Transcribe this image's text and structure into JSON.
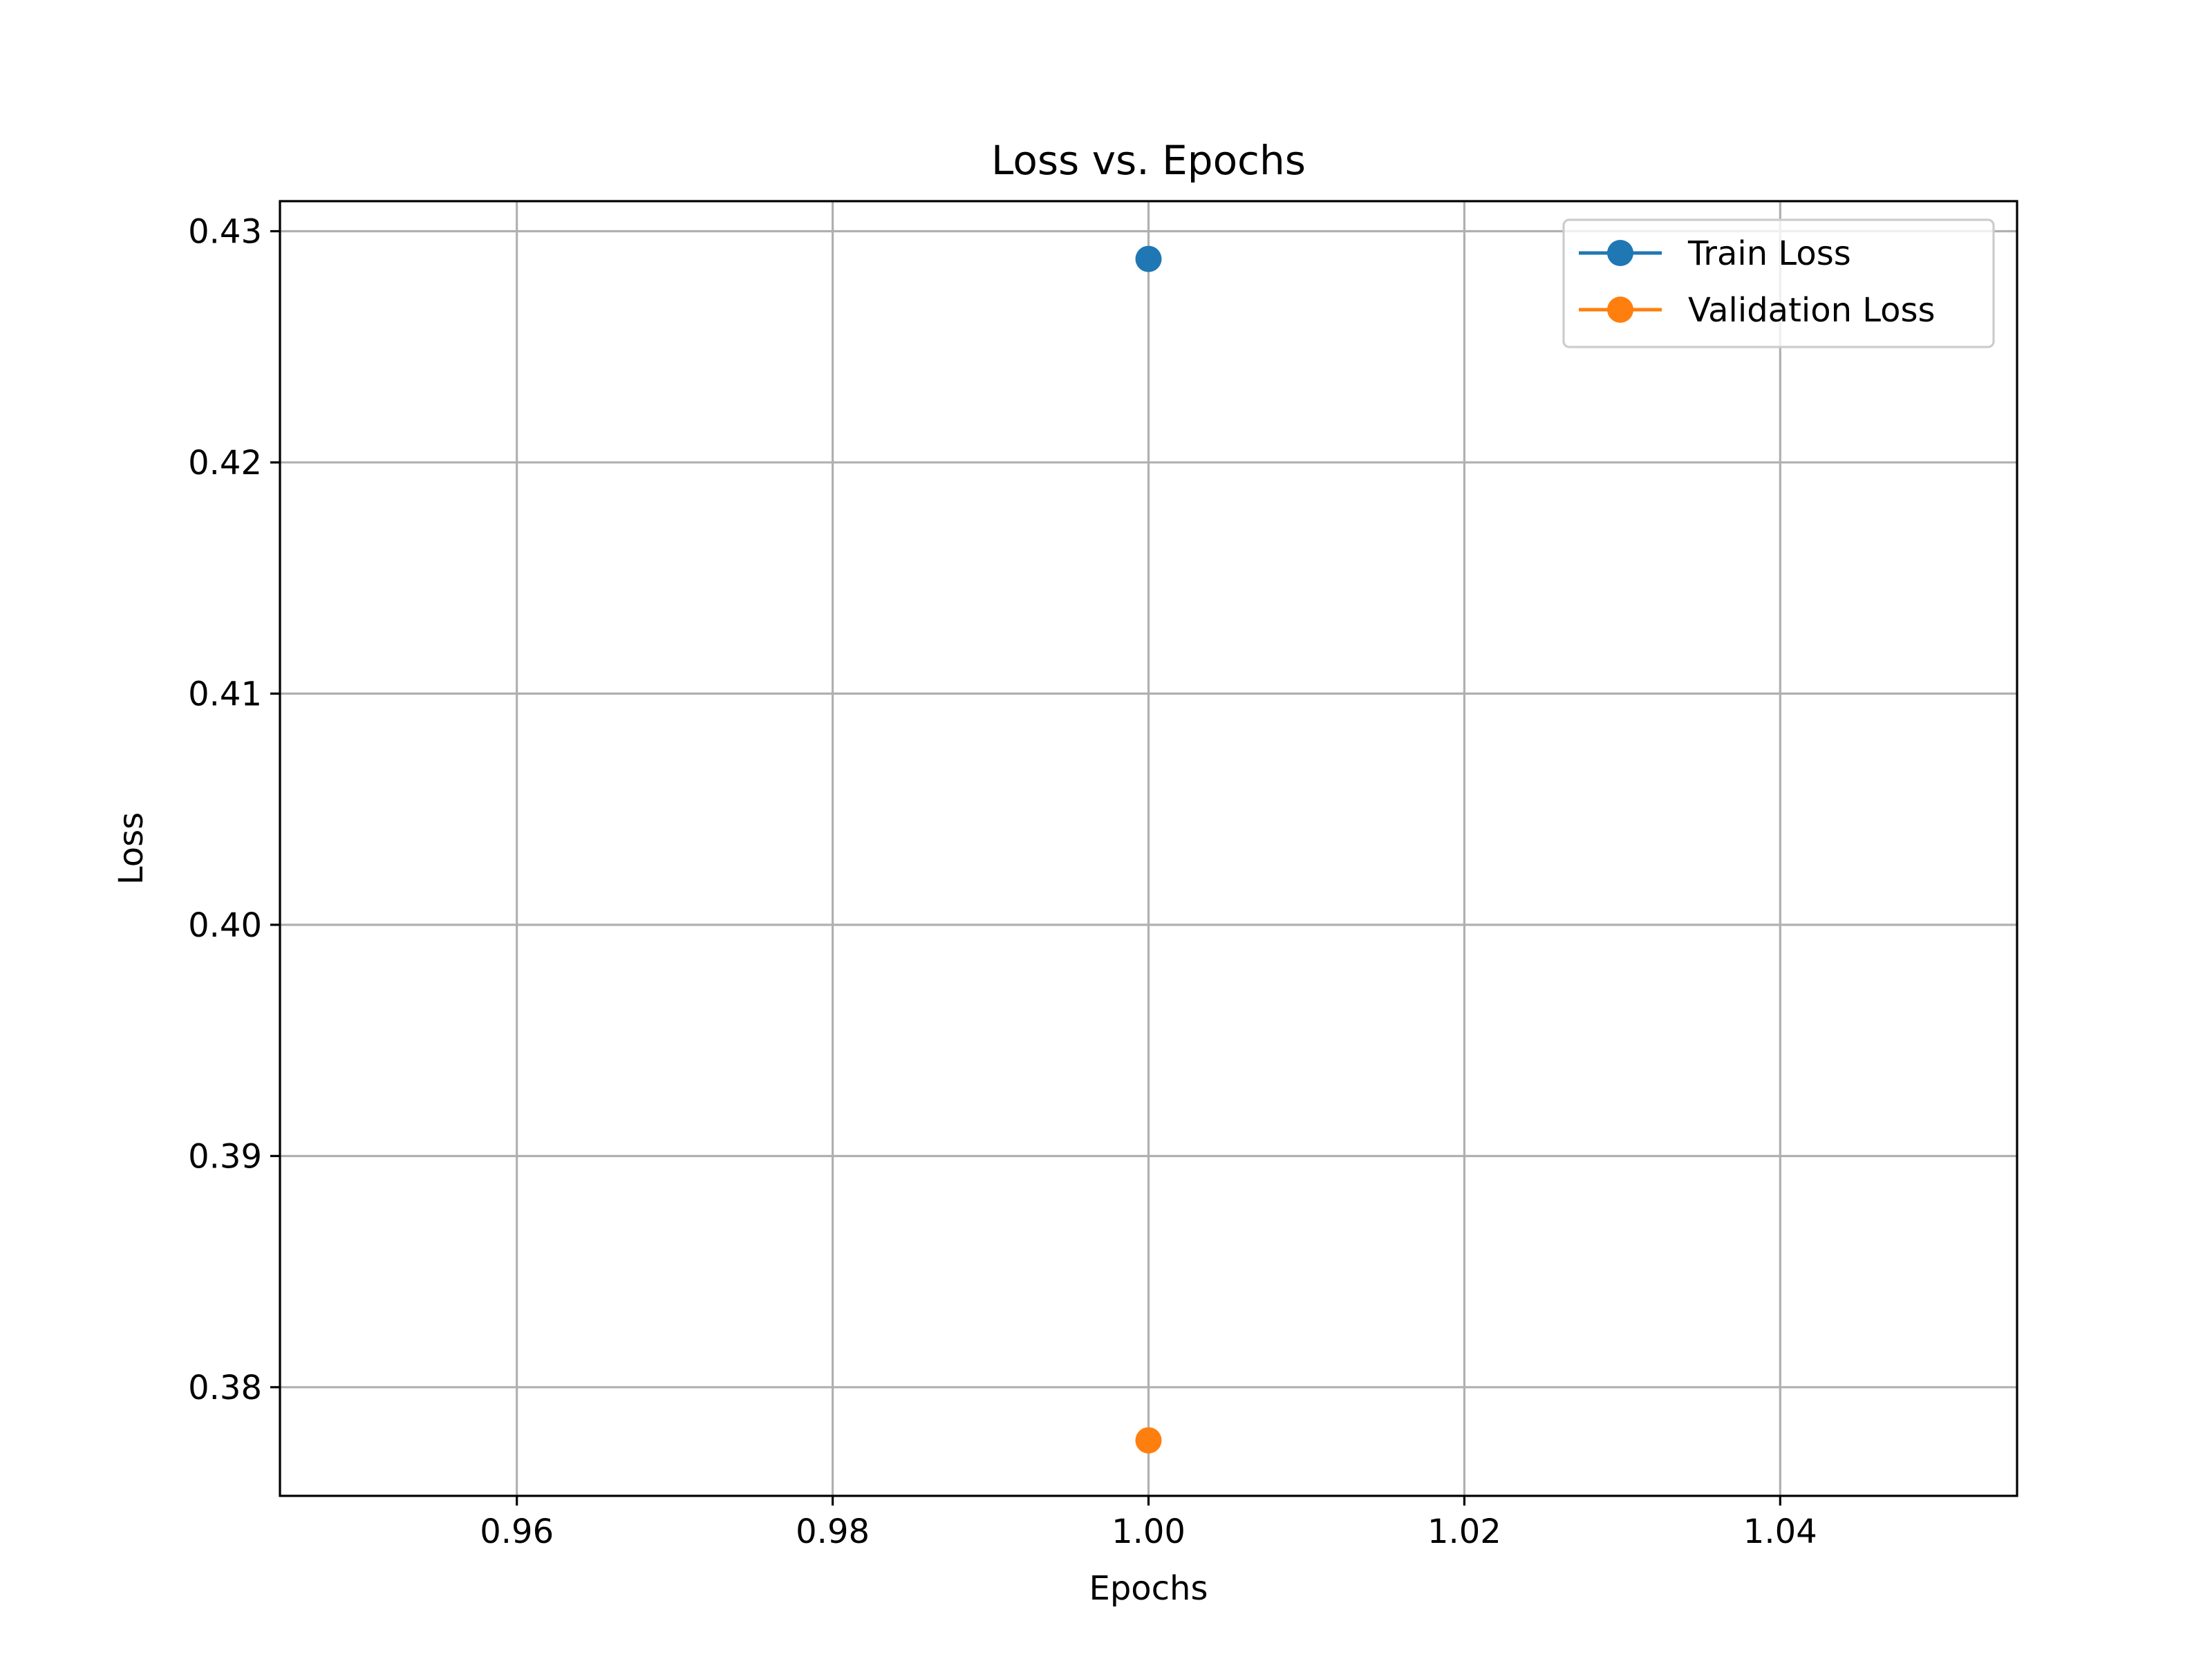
{
  "chart_data": {
    "type": "line",
    "title": "Loss vs. Epochs",
    "xlabel": "Epochs",
    "ylabel": "Loss",
    "xlim": [
      0.945,
      1.055
    ],
    "ylim": [
      0.3753,
      0.4313
    ],
    "xticks": [
      0.96,
      0.98,
      1.0,
      1.02,
      1.04
    ],
    "xtick_labels": [
      "0.96",
      "0.98",
      "1.00",
      "1.02",
      "1.04"
    ],
    "yticks": [
      0.38,
      0.39,
      0.4,
      0.41,
      0.42,
      0.43
    ],
    "ytick_labels": [
      "0.38",
      "0.39",
      "0.40",
      "0.41",
      "0.42",
      "0.43"
    ],
    "grid": true,
    "legend_position": "top-right",
    "series": [
      {
        "name": "Train Loss",
        "color": "#1f77b4",
        "marker": "circle",
        "x": [
          1.0
        ],
        "y": [
          0.4288
        ]
      },
      {
        "name": "Validation Loss",
        "color": "#ff7f0e",
        "marker": "circle",
        "x": [
          1.0
        ],
        "y": [
          0.3777
        ]
      }
    ]
  }
}
